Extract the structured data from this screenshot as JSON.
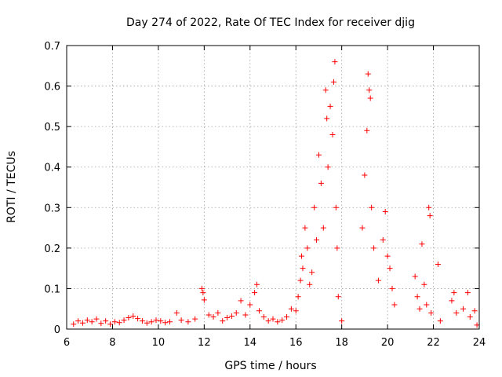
{
  "chart_data": {
    "type": "scatter",
    "title": "Day 274 of 2022, Rate Of TEC Index for receiver djig",
    "xlabel": "GPS time / hours",
    "ylabel": "ROTI / TECUs",
    "xlim": [
      6,
      24
    ],
    "ylim": [
      0,
      0.7
    ],
    "xticks": [
      6,
      8,
      10,
      12,
      14,
      16,
      18,
      20,
      22,
      24
    ],
    "yticks": [
      0,
      0.1,
      0.2,
      0.3,
      0.4,
      0.5,
      0.6,
      0.7
    ],
    "xtick_labels": [
      "6",
      "8",
      "10",
      "12",
      "14",
      "16",
      "18",
      "20",
      "22",
      "24"
    ],
    "ytick_labels": [
      "0",
      "0.1",
      "0.2",
      "0.3",
      "0.4",
      "0.5",
      "0.6",
      "0.7"
    ],
    "grid": true,
    "marker": "+",
    "color": "#ff0000",
    "series": [
      {
        "name": "ROTI",
        "points": [
          [
            6.3,
            0.012
          ],
          [
            6.5,
            0.02
          ],
          [
            6.7,
            0.015
          ],
          [
            6.9,
            0.022
          ],
          [
            7.1,
            0.018
          ],
          [
            7.3,
            0.025
          ],
          [
            7.5,
            0.014
          ],
          [
            7.7,
            0.02
          ],
          [
            7.9,
            0.012
          ],
          [
            8.1,
            0.018
          ],
          [
            8.3,
            0.016
          ],
          [
            8.5,
            0.022
          ],
          [
            8.7,
            0.028
          ],
          [
            8.9,
            0.032
          ],
          [
            9.1,
            0.026
          ],
          [
            9.3,
            0.02
          ],
          [
            9.5,
            0.015
          ],
          [
            9.7,
            0.018
          ],
          [
            9.9,
            0.022
          ],
          [
            10.1,
            0.02
          ],
          [
            10.3,
            0.016
          ],
          [
            10.5,
            0.018
          ],
          [
            10.8,
            0.04
          ],
          [
            11.0,
            0.022
          ],
          [
            11.3,
            0.018
          ],
          [
            11.6,
            0.025
          ],
          [
            11.9,
            0.1
          ],
          [
            11.95,
            0.09
          ],
          [
            12.0,
            0.072
          ],
          [
            12.2,
            0.035
          ],
          [
            12.4,
            0.03
          ],
          [
            12.6,
            0.04
          ],
          [
            12.8,
            0.02
          ],
          [
            13.0,
            0.028
          ],
          [
            13.2,
            0.032
          ],
          [
            13.4,
            0.04
          ],
          [
            13.6,
            0.07
          ],
          [
            13.8,
            0.035
          ],
          [
            14.0,
            0.06
          ],
          [
            14.2,
            0.09
          ],
          [
            14.3,
            0.11
          ],
          [
            14.4,
            0.045
          ],
          [
            14.6,
            0.03
          ],
          [
            14.8,
            0.02
          ],
          [
            15.0,
            0.025
          ],
          [
            15.2,
            0.018
          ],
          [
            15.4,
            0.022
          ],
          [
            15.6,
            0.03
          ],
          [
            15.8,
            0.05
          ],
          [
            16.0,
            0.045
          ],
          [
            16.1,
            0.08
          ],
          [
            16.2,
            0.12
          ],
          [
            16.25,
            0.18
          ],
          [
            16.3,
            0.15
          ],
          [
            16.4,
            0.25
          ],
          [
            16.5,
            0.2
          ],
          [
            16.6,
            0.11
          ],
          [
            16.7,
            0.14
          ],
          [
            16.8,
            0.3
          ],
          [
            16.9,
            0.22
          ],
          [
            17.0,
            0.43
          ],
          [
            17.1,
            0.36
          ],
          [
            17.2,
            0.25
          ],
          [
            17.3,
            0.59
          ],
          [
            17.35,
            0.52
          ],
          [
            17.4,
            0.4
          ],
          [
            17.5,
            0.55
          ],
          [
            17.6,
            0.48
          ],
          [
            17.65,
            0.61
          ],
          [
            17.7,
            0.66
          ],
          [
            17.75,
            0.3
          ],
          [
            17.8,
            0.2
          ],
          [
            17.85,
            0.08
          ],
          [
            18.0,
            0.02
          ],
          [
            18.9,
            0.25
          ],
          [
            19.0,
            0.38
          ],
          [
            19.1,
            0.49
          ],
          [
            19.15,
            0.63
          ],
          [
            19.2,
            0.59
          ],
          [
            19.25,
            0.57
          ],
          [
            19.3,
            0.3
          ],
          [
            19.4,
            0.2
          ],
          [
            19.6,
            0.12
          ],
          [
            19.8,
            0.22
          ],
          [
            19.9,
            0.29
          ],
          [
            20.0,
            0.18
          ],
          [
            20.1,
            0.15
          ],
          [
            20.2,
            0.1
          ],
          [
            20.3,
            0.06
          ],
          [
            21.2,
            0.13
          ],
          [
            21.3,
            0.08
          ],
          [
            21.4,
            0.05
          ],
          [
            21.5,
            0.21
          ],
          [
            21.6,
            0.11
          ],
          [
            21.7,
            0.06
          ],
          [
            21.8,
            0.3
          ],
          [
            21.85,
            0.28
          ],
          [
            21.9,
            0.04
          ],
          [
            22.2,
            0.16
          ],
          [
            22.3,
            0.02
          ],
          [
            22.8,
            0.07
          ],
          [
            22.9,
            0.09
          ],
          [
            23.0,
            0.04
          ],
          [
            23.3,
            0.05
          ],
          [
            23.5,
            0.09
          ],
          [
            23.6,
            0.03
          ],
          [
            23.8,
            0.045
          ],
          [
            23.9,
            0.01
          ]
        ]
      }
    ]
  }
}
